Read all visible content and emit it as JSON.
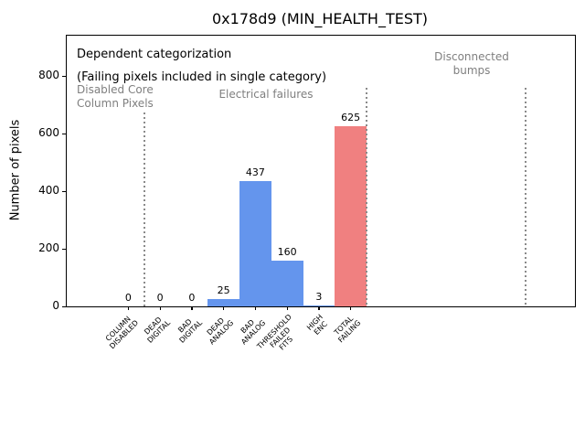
{
  "chart_data": {
    "type": "bar",
    "title": "0x178d9 (MIN_HEALTH_TEST)",
    "ylabel": "Number of pixels",
    "xlabel": "",
    "ylim": [
      0,
      941
    ],
    "yticks": [
      0,
      200,
      400,
      600,
      800
    ],
    "grid": false,
    "legend": null,
    "categories": [
      "COLUMN\nDISABLED",
      "DEAD\nDIGITAL",
      "BAD\nDIGITAL",
      "DEAD\nANALOG",
      "BAD\nANALOG",
      "THRESHOLD\nFAILED\nFITS",
      "HIGH\nENC",
      "TOTAL\nFAILING"
    ],
    "values": [
      0,
      0,
      0,
      25,
      437,
      160,
      3,
      625
    ],
    "value_labels": [
      "0",
      "0",
      "0",
      "25",
      "437",
      "160",
      "3",
      "625"
    ],
    "bar_colors": [
      "#6495ED",
      "#6495ED",
      "#6495ED",
      "#6495ED",
      "#6495ED",
      "#6495ED",
      "#6495ED",
      "#F08080"
    ],
    "annotation": {
      "lines": [
        "Dependent categorization",
        "(Failing pixels included in single category)"
      ]
    },
    "sections": [
      {
        "text": "Disabled Core\nColumn Pixels",
        "align": "left"
      },
      {
        "text": "Electrical failures",
        "align": "center"
      },
      {
        "text": "Disconnected\nbumps",
        "align": "center"
      }
    ],
    "dividers_x_units": [
      0.5,
      7.5,
      12.5
    ],
    "colors": {
      "bar_blue": "#6495ED",
      "bar_red": "#F08080",
      "section_text": "#7f7f7f",
      "divider": "#8a8a8a",
      "axis": "#000000",
      "background": "#ffffff"
    }
  }
}
